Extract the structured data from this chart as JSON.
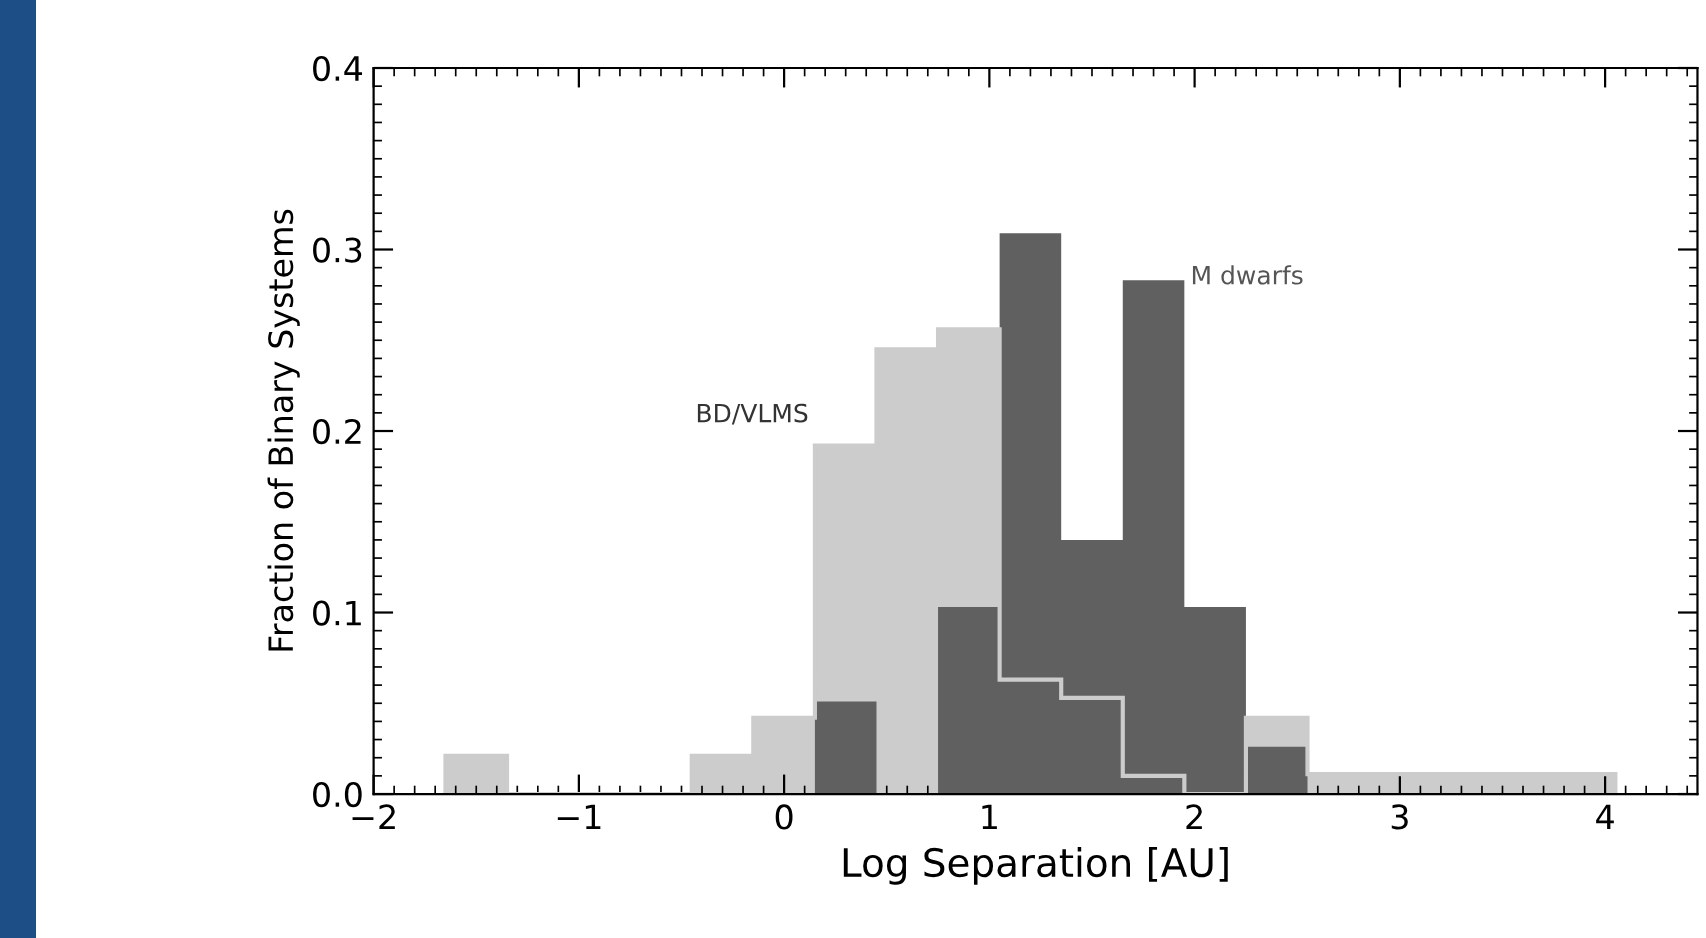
{
  "chart_data": {
    "type": "histogram",
    "xlabel": "Log Separation [AU]",
    "ylabel": "Fraction of Binary Systems",
    "bins": [
      -1.65,
      -1.35,
      -1.05,
      -0.75,
      -0.45,
      -0.15,
      0.15,
      0.45,
      0.75,
      1.05,
      1.35,
      1.65,
      1.95,
      2.25,
      2.55,
      2.85,
      3.15,
      3.45,
      3.75,
      4.05
    ],
    "series": [
      {
        "name": "BD/VLMS",
        "color": "#cccccc",
        "values": [
          0.021,
          0,
          0,
          0,
          0.021,
          0.042,
          0.192,
          0.245,
          0.256,
          0.063,
          0.053,
          0.01,
          0,
          0.042,
          0.011,
          0.011,
          0.011,
          0.011,
          0.011
        ]
      },
      {
        "name": "M dwarfs",
        "color": "#606060",
        "values": [
          0,
          0,
          0,
          0,
          0,
          0,
          0.051,
          0,
          0.103,
          0.309,
          0.14,
          0.283,
          0.103,
          0.026,
          0,
          0,
          0,
          0,
          0
        ]
      }
    ],
    "xlim": [
      -2,
      4.45
    ],
    "ylim": [
      0,
      0.4
    ],
    "xticks": [
      {
        "value": -2,
        "label": "−2"
      },
      {
        "value": -1,
        "label": "−1"
      },
      0,
      1,
      2,
      3,
      4
    ],
    "yticks": [
      {
        "value": 0,
        "label": "0.0"
      },
      0.1,
      0.2,
      0.3,
      0.4
    ],
    "grid": false,
    "legend": false
  }
}
